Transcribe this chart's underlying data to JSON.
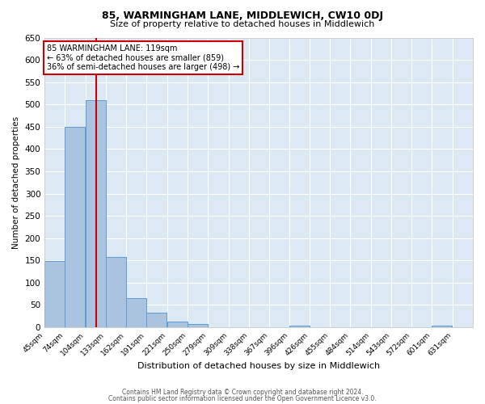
{
  "title1": "85, WARMINGHAM LANE, MIDDLEWICH, CW10 0DJ",
  "title2": "Size of property relative to detached houses in Middlewich",
  "xlabel": "Distribution of detached houses by size in Middlewich",
  "ylabel": "Number of detached properties",
  "footer1": "Contains HM Land Registry data © Crown copyright and database right 2024.",
  "footer2": "Contains public sector information licensed under the Open Government Licence v3.0.",
  "annotation_line1": "85 WARMINGHAM LANE: 119sqm",
  "annotation_line2": "← 63% of detached houses are smaller (859)",
  "annotation_line3": "36% of semi-detached houses are larger (498) →",
  "property_size": 119,
  "bin_labels": [
    "45sqm",
    "74sqm",
    "104sqm",
    "133sqm",
    "162sqm",
    "191sqm",
    "221sqm",
    "250sqm",
    "279sqm",
    "309sqm",
    "338sqm",
    "367sqm",
    "396sqm",
    "426sqm",
    "455sqm",
    "484sqm",
    "514sqm",
    "543sqm",
    "572sqm",
    "601sqm",
    "631sqm"
  ],
  "bin_edges": [
    45,
    74,
    104,
    133,
    162,
    191,
    221,
    250,
    279,
    309,
    338,
    367,
    396,
    426,
    455,
    484,
    514,
    543,
    572,
    601,
    631
  ],
  "bar_heights": [
    148,
    450,
    510,
    157,
    65,
    32,
    13,
    8,
    0,
    0,
    0,
    0,
    3,
    0,
    0,
    0,
    0,
    0,
    0,
    3
  ],
  "bar_color": "#aac4e0",
  "bar_edge_color": "#5b9bd5",
  "vline_x": 119,
  "vline_color": "#cc0000",
  "background_color": "#dce9f5",
  "grid_color": "#ffffff",
  "ylim": [
    0,
    650
  ],
  "yticks": [
    0,
    50,
    100,
    150,
    200,
    250,
    300,
    350,
    400,
    450,
    500,
    550,
    600,
    650
  ]
}
